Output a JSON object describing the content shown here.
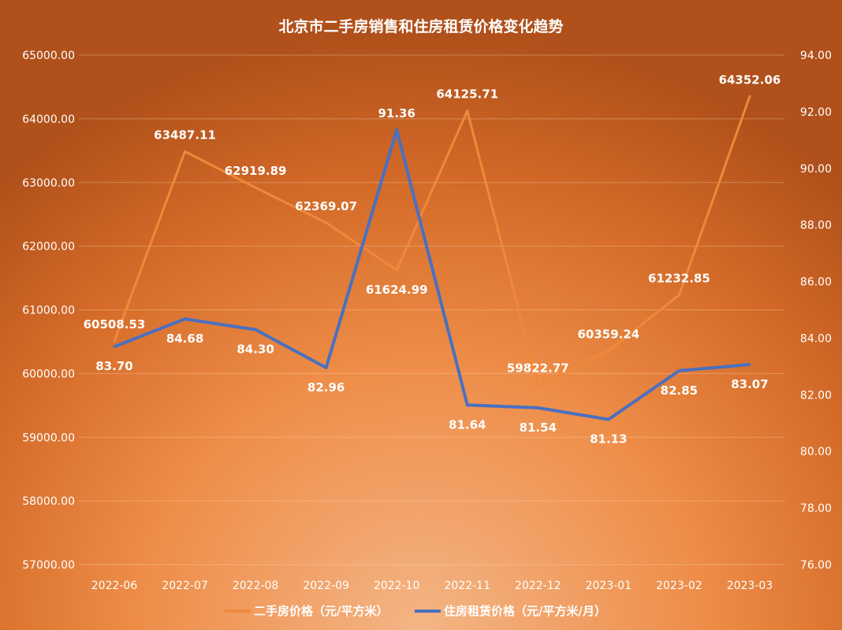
{
  "chart_data": {
    "type": "line",
    "title": "北京市二手房销售和住房租赁价格变化趋势",
    "categories": [
      "2022-06",
      "2022-07",
      "2022-08",
      "2022-09",
      "2022-10",
      "2022-11",
      "2022-12",
      "2023-01",
      "2023-02",
      "2023-03"
    ],
    "y_left": {
      "range": [
        57000,
        65000
      ],
      "step": 1000,
      "ticks": [
        "57000.00",
        "58000.00",
        "59000.00",
        "60000.00",
        "61000.00",
        "62000.00",
        "63000.00",
        "64000.00",
        "65000.00"
      ]
    },
    "y_right": {
      "range": [
        76,
        94
      ],
      "step": 2,
      "ticks": [
        "76.00",
        "78.00",
        "80.00",
        "82.00",
        "84.00",
        "86.00",
        "88.00",
        "90.00",
        "92.00",
        "94.00"
      ]
    },
    "grid": true,
    "legend_position": "bottom",
    "series": [
      {
        "name": "二手房价格（元/平方米）",
        "axis": "left",
        "color": "#f0883a",
        "values": [
          60508.53,
          63487.11,
          62919.89,
          62369.07,
          61624.99,
          64125.71,
          59822.77,
          60359.24,
          61232.85,
          64352.06
        ],
        "labels": [
          "60508.53",
          "63487.11",
          "62919.89",
          "62369.07",
          "61624.99",
          "64125.71",
          "59822.77",
          "60359.24",
          "61232.85",
          "64352.06"
        ],
        "label_side": [
          "above",
          "above",
          "above",
          "above",
          "below",
          "above",
          "above",
          "above",
          "above",
          "above"
        ]
      },
      {
        "name": "住房租赁价格（元/平方米/月）",
        "axis": "right",
        "color": "#4a70c0",
        "values": [
          83.7,
          84.68,
          84.3,
          82.96,
          91.36,
          81.64,
          81.54,
          81.13,
          82.85,
          83.07
        ],
        "labels": [
          "83.70",
          "84.68",
          "84.30",
          "82.96",
          "91.36",
          "81.64",
          "81.54",
          "81.13",
          "82.85",
          "83.07"
        ],
        "label_side": [
          "below",
          "below",
          "below",
          "below",
          "above",
          "below",
          "below",
          "below",
          "below",
          "below"
        ]
      }
    ]
  }
}
